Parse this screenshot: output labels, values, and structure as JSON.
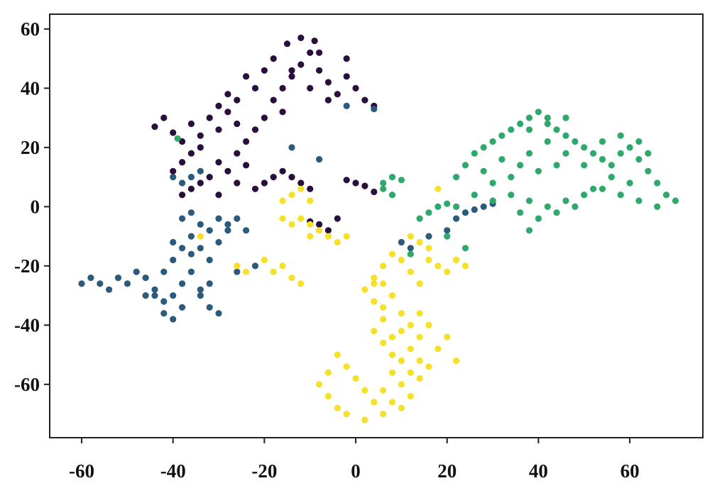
{
  "chart_data": {
    "type": "scatter",
    "title": "",
    "xlabel": "",
    "ylabel": "",
    "xlim": [
      -67,
      76
    ],
    "ylim": [
      -78,
      65
    ],
    "x_ticks": [
      -60,
      -40,
      -20,
      0,
      20,
      40,
      60
    ],
    "y_ticks": [
      60,
      40,
      20,
      0,
      -20,
      -40,
      -60
    ],
    "x_tick_labels": [
      "-60",
      "-40",
      "-20",
      "0",
      "20",
      "40",
      "60"
    ],
    "y_tick_labels": [
      "60",
      "40",
      "20",
      "0",
      "-20",
      "-40",
      "-60"
    ],
    "grid": false,
    "legend": "none",
    "series": [
      {
        "color": "#2a0f3d",
        "points": [
          [
            -44,
            27
          ],
          [
            -42,
            30
          ],
          [
            -40,
            25
          ],
          [
            -38,
            22
          ],
          [
            -36,
            28
          ],
          [
            -34,
            24
          ],
          [
            -32,
            30
          ],
          [
            -30,
            26
          ],
          [
            -28,
            32
          ],
          [
            -26,
            28
          ],
          [
            -24,
            22
          ],
          [
            -22,
            26
          ],
          [
            -20,
            30
          ],
          [
            -18,
            36
          ],
          [
            -16,
            40
          ],
          [
            -14,
            44
          ],
          [
            -12,
            48
          ],
          [
            -10,
            52
          ],
          [
            -8,
            46
          ],
          [
            -6,
            42
          ],
          [
            -4,
            38
          ],
          [
            -2,
            44
          ],
          [
            0,
            40
          ],
          [
            2,
            36
          ],
          [
            4,
            34
          ],
          [
            -15,
            55
          ],
          [
            -12,
            57
          ],
          [
            -9,
            56
          ],
          [
            -18,
            50
          ],
          [
            -20,
            46
          ],
          [
            -22,
            40
          ],
          [
            -24,
            44
          ],
          [
            -26,
            36
          ],
          [
            -28,
            38
          ],
          [
            -30,
            34
          ],
          [
            -34,
            20
          ],
          [
            -36,
            18
          ],
          [
            -38,
            15
          ],
          [
            -40,
            12
          ],
          [
            -30,
            15
          ],
          [
            -28,
            12
          ],
          [
            -26,
            18
          ],
          [
            -24,
            14
          ],
          [
            -32,
            10
          ],
          [
            -34,
            8
          ],
          [
            -36,
            6
          ],
          [
            -38,
            4
          ],
          [
            -30,
            4
          ],
          [
            -26,
            8
          ],
          [
            -22,
            6
          ],
          [
            -20,
            8
          ],
          [
            -18,
            10
          ],
          [
            -16,
            12
          ],
          [
            -14,
            10
          ],
          [
            -12,
            8
          ],
          [
            -10,
            6
          ],
          [
            -2,
            9
          ],
          [
            0,
            8
          ],
          [
            2,
            7
          ],
          [
            4,
            5
          ],
          [
            -8,
            -6
          ],
          [
            -6,
            -8
          ],
          [
            -4,
            -4
          ],
          [
            -10,
            -5
          ],
          [
            -14,
            46
          ],
          [
            -8,
            52
          ],
          [
            -2,
            50
          ],
          [
            -6,
            36
          ],
          [
            -10,
            40
          ],
          [
            -16,
            32
          ]
        ]
      },
      {
        "color": "#2c5a7a",
        "points": [
          [
            -60,
            -26
          ],
          [
            -58,
            -24
          ],
          [
            -56,
            -26
          ],
          [
            -54,
            -28
          ],
          [
            -52,
            -24
          ],
          [
            -50,
            -26
          ],
          [
            -48,
            -22
          ],
          [
            -46,
            -24
          ],
          [
            -44,
            -28
          ],
          [
            -42,
            -32
          ],
          [
            -40,
            -30
          ],
          [
            -38,
            -26
          ],
          [
            -36,
            -22
          ],
          [
            -34,
            -28
          ],
          [
            -32,
            -34
          ],
          [
            -30,
            -36
          ],
          [
            -42,
            -22
          ],
          [
            -40,
            -18
          ],
          [
            -38,
            -14
          ],
          [
            -36,
            -10
          ],
          [
            -34,
            -6
          ],
          [
            -32,
            -8
          ],
          [
            -30,
            -4
          ],
          [
            -28,
            -6
          ],
          [
            -26,
            -4
          ],
          [
            -38,
            -4
          ],
          [
            -36,
            -2
          ],
          [
            -40,
            -12
          ],
          [
            -34,
            -14
          ],
          [
            -36,
            -16
          ],
          [
            -32,
            -18
          ],
          [
            -42,
            -36
          ],
          [
            -40,
            -38
          ],
          [
            -38,
            -34
          ],
          [
            -30,
            -12
          ],
          [
            -28,
            -8
          ],
          [
            -24,
            -8
          ],
          [
            -22,
            -20
          ],
          [
            -26,
            -22
          ],
          [
            -38,
            8
          ],
          [
            -36,
            10
          ],
          [
            -40,
            10
          ],
          [
            -34,
            12
          ],
          [
            -2,
            34
          ],
          [
            4,
            33
          ],
          [
            -14,
            20
          ],
          [
            -8,
            16
          ],
          [
            10,
            -12
          ],
          [
            12,
            -14
          ],
          [
            16,
            -10
          ],
          [
            20,
            -8
          ],
          [
            22,
            -4
          ],
          [
            24,
            -2
          ],
          [
            26,
            -1
          ],
          [
            28,
            0
          ],
          [
            30,
            1
          ],
          [
            -44,
            -30
          ],
          [
            -46,
            -30
          ],
          [
            -34,
            -30
          ],
          [
            -32,
            -26
          ]
        ]
      },
      {
        "color": "#2ea86b",
        "points": [
          [
            22,
            10
          ],
          [
            24,
            14
          ],
          [
            26,
            18
          ],
          [
            28,
            20
          ],
          [
            30,
            22
          ],
          [
            32,
            24
          ],
          [
            34,
            26
          ],
          [
            36,
            28
          ],
          [
            38,
            30
          ],
          [
            40,
            32
          ],
          [
            42,
            28
          ],
          [
            44,
            26
          ],
          [
            46,
            24
          ],
          [
            48,
            22
          ],
          [
            50,
            20
          ],
          [
            52,
            18
          ],
          [
            54,
            16
          ],
          [
            56,
            14
          ],
          [
            58,
            18
          ],
          [
            60,
            20
          ],
          [
            62,
            16
          ],
          [
            64,
            12
          ],
          [
            66,
            8
          ],
          [
            68,
            4
          ],
          [
            70,
            2
          ],
          [
            66,
            0
          ],
          [
            62,
            2
          ],
          [
            58,
            4
          ],
          [
            54,
            6
          ],
          [
            50,
            4
          ],
          [
            46,
            2
          ],
          [
            42,
            0
          ],
          [
            38,
            2
          ],
          [
            34,
            4
          ],
          [
            30,
            2
          ],
          [
            36,
            -2
          ],
          [
            40,
            -4
          ],
          [
            44,
            -2
          ],
          [
            48,
            0
          ],
          [
            52,
            6
          ],
          [
            56,
            10
          ],
          [
            60,
            8
          ],
          [
            44,
            14
          ],
          [
            40,
            12
          ],
          [
            36,
            14
          ],
          [
            32,
            16
          ],
          [
            28,
            12
          ],
          [
            26,
            4
          ],
          [
            30,
            8
          ],
          [
            34,
            10
          ],
          [
            38,
            18
          ],
          [
            42,
            22
          ],
          [
            46,
            18
          ],
          [
            50,
            14
          ],
          [
            54,
            22
          ],
          [
            58,
            24
          ],
          [
            62,
            22
          ],
          [
            46,
            30
          ],
          [
            42,
            30
          ],
          [
            38,
            26
          ],
          [
            18,
            0
          ],
          [
            20,
            1
          ],
          [
            22,
            0
          ],
          [
            16,
            -2
          ],
          [
            14,
            -4
          ],
          [
            20,
            -10
          ],
          [
            24,
            -14
          ],
          [
            6,
            8
          ],
          [
            8,
            10
          ],
          [
            10,
            9
          ],
          [
            6,
            6
          ],
          [
            8,
            4
          ],
          [
            -39,
            23
          ],
          [
            12,
            -16
          ],
          [
            38,
            -8
          ],
          [
            64,
            18
          ]
        ]
      },
      {
        "color": "#f5e02a",
        "points": [
          [
            4,
            -42
          ],
          [
            6,
            -46
          ],
          [
            8,
            -50
          ],
          [
            10,
            -52
          ],
          [
            12,
            -48
          ],
          [
            14,
            -44
          ],
          [
            16,
            -40
          ],
          [
            8,
            -56
          ],
          [
            10,
            -60
          ],
          [
            12,
            -64
          ],
          [
            14,
            -58
          ],
          [
            16,
            -54
          ],
          [
            6,
            -62
          ],
          [
            4,
            -66
          ],
          [
            2,
            -62
          ],
          [
            0,
            -58
          ],
          [
            -2,
            -54
          ],
          [
            -4,
            -50
          ],
          [
            -6,
            -56
          ],
          [
            -8,
            -60
          ],
          [
            -6,
            -64
          ],
          [
            -4,
            -68
          ],
          [
            -2,
            -70
          ],
          [
            2,
            -72
          ],
          [
            6,
            -70
          ],
          [
            8,
            -66
          ],
          [
            10,
            -68
          ],
          [
            12,
            -56
          ],
          [
            14,
            -52
          ],
          [
            18,
            -48
          ],
          [
            20,
            -44
          ],
          [
            22,
            -52
          ],
          [
            8,
            -44
          ],
          [
            6,
            -38
          ],
          [
            4,
            -32
          ],
          [
            2,
            -28
          ],
          [
            4,
            -24
          ],
          [
            6,
            -20
          ],
          [
            8,
            -16
          ],
          [
            10,
            -18
          ],
          [
            12,
            -22
          ],
          [
            14,
            -26
          ],
          [
            16,
            -18
          ],
          [
            18,
            -20
          ],
          [
            20,
            -22
          ],
          [
            22,
            -18
          ],
          [
            24,
            -20
          ],
          [
            16,
            -14
          ],
          [
            14,
            -12
          ],
          [
            12,
            -10
          ],
          [
            6,
            -34
          ],
          [
            8,
            -30
          ],
          [
            10,
            -36
          ],
          [
            12,
            -40
          ],
          [
            14,
            -36
          ],
          [
            10,
            -42
          ],
          [
            -10,
            -10
          ],
          [
            -8,
            -8
          ],
          [
            -6,
            -10
          ],
          [
            -4,
            -12
          ],
          [
            -2,
            -10
          ],
          [
            -10,
            -6
          ],
          [
            -12,
            -4
          ],
          [
            -14,
            -6
          ],
          [
            -16,
            -4
          ],
          [
            -14,
            4
          ],
          [
            -12,
            6
          ],
          [
            -10,
            2
          ],
          [
            -16,
            2
          ],
          [
            -26,
            -20
          ],
          [
            -24,
            -22
          ],
          [
            -18,
            -22
          ],
          [
            -16,
            -20
          ],
          [
            -14,
            -24
          ],
          [
            -12,
            -26
          ],
          [
            -20,
            -18
          ],
          [
            -34,
            -10
          ],
          [
            4,
            -26
          ],
          [
            6,
            -26
          ],
          [
            18,
            6
          ]
        ]
      }
    ]
  }
}
